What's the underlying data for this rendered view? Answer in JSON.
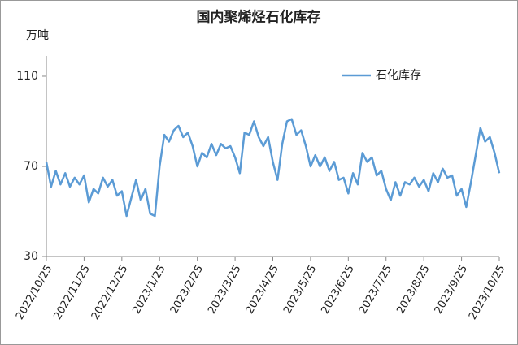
{
  "chart_data": {
    "type": "line",
    "title": "国内聚烯烃石化库存",
    "y_label": "万吨",
    "categories": [
      "2022/10/25",
      null,
      null,
      null,
      null,
      null,
      null,
      null,
      "2022/11/25",
      null,
      null,
      null,
      null,
      null,
      null,
      null,
      "2022/12/25",
      null,
      null,
      null,
      null,
      null,
      null,
      null,
      "2023/1/25",
      null,
      null,
      null,
      null,
      null,
      null,
      null,
      "2023/2/25",
      null,
      null,
      null,
      null,
      null,
      null,
      null,
      "2023/3/25",
      null,
      null,
      null,
      null,
      null,
      null,
      null,
      "2023/4/25",
      null,
      null,
      null,
      null,
      null,
      null,
      null,
      "2023/5/25",
      null,
      null,
      null,
      null,
      null,
      null,
      null,
      "2023/6/25",
      null,
      null,
      null,
      null,
      null,
      null,
      null,
      "2023/7/25",
      null,
      null,
      null,
      null,
      null,
      null,
      null,
      "2023/8/25",
      null,
      null,
      null,
      null,
      null,
      null,
      null,
      "2023/9/25",
      null,
      null,
      null,
      null,
      null,
      null,
      null,
      "2023/10/25"
    ],
    "series": [
      {
        "name": "石化库存",
        "color": "#5b9bd5",
        "values": [
          72,
          61,
          68,
          62,
          67,
          61,
          65,
          62,
          66,
          54,
          60,
          58,
          65,
          61,
          64,
          57,
          59,
          48,
          56,
          64,
          55,
          60,
          49,
          48,
          70,
          84,
          81,
          86,
          88,
          83,
          85,
          79,
          70,
          76,
          74,
          80,
          75,
          80,
          78,
          79,
          74,
          67,
          85,
          84,
          90,
          83,
          79,
          83,
          72,
          64,
          80,
          90,
          91,
          84,
          86,
          79,
          70,
          75,
          70,
          74,
          68,
          72,
          64,
          65,
          58,
          67,
          62,
          76,
          72,
          74,
          66,
          68,
          60,
          55,
          63,
          57,
          63,
          62,
          65,
          61,
          64,
          59,
          67,
          63,
          69,
          65,
          66,
          57,
          60,
          52,
          63,
          75,
          87,
          81,
          83,
          76,
          67
        ]
      }
    ],
    "ylim": [
      30,
      119
    ],
    "yticks": [
      30,
      70,
      110
    ],
    "grid": false,
    "legend": "top-right"
  }
}
